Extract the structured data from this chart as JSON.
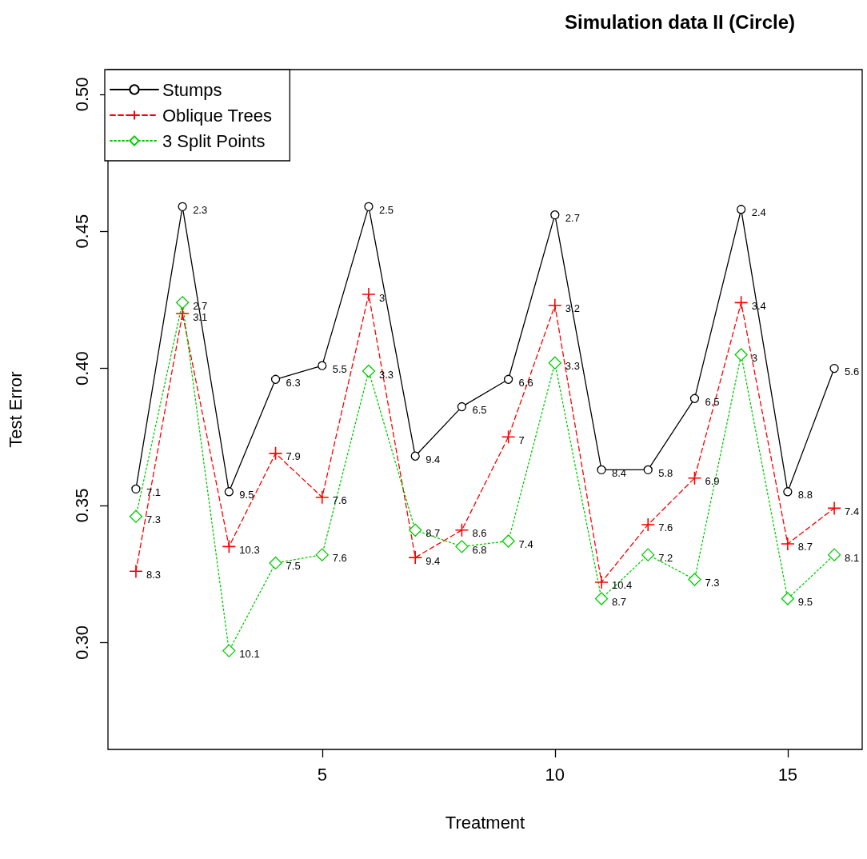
{
  "chart_data": {
    "type": "line",
    "title": "Simulation data II (Circle)",
    "xlabel": "Treatment",
    "ylabel": "Test Error",
    "x": [
      1,
      2,
      3,
      4,
      5,
      6,
      7,
      8,
      9,
      10,
      11,
      12,
      13,
      14,
      15,
      16
    ],
    "xlim": [
      0.4,
      16.6
    ],
    "xticks": [
      5,
      10,
      15
    ],
    "ylim": [
      0.261,
      0.509
    ],
    "yticks": [
      {
        "value": 0.3,
        "label": "0.30"
      },
      0.35,
      {
        "value": 0.4,
        "label": "0.40"
      },
      0.45,
      {
        "value": 0.5,
        "label": "0.50"
      }
    ],
    "grid": false,
    "legend": "top left",
    "series": [
      {
        "name": "Stumps",
        "color": "#000000",
        "marker": "circle",
        "line_style": "solid",
        "values": [
          0.356,
          0.459,
          0.355,
          0.396,
          0.401,
          0.459,
          0.368,
          0.386,
          0.396,
          0.456,
          0.363,
          0.363,
          0.389,
          0.458,
          0.355,
          0.4
        ]
      },
      {
        "name": "Oblique Trees",
        "color": "#ff0000",
        "marker": "cross",
        "line_style": "dashed",
        "values": [
          0.326,
          0.42,
          0.335,
          0.369,
          0.353,
          0.427,
          0.331,
          0.341,
          0.375,
          0.423,
          0.322,
          0.343,
          0.36,
          0.424,
          0.336,
          0.349
        ]
      },
      {
        "name": "3 Split Points",
        "color": "#00cd00",
        "marker": "diamond",
        "line_style": "dotted",
        "values": [
          0.346,
          0.424,
          0.297,
          0.329,
          0.332,
          0.399,
          0.341,
          0.335,
          0.337,
          0.402,
          0.316,
          0.332,
          0.323,
          0.405,
          0.316,
          0.332
        ]
      }
    ],
    "annotations": [
      {
        "text": "7.1",
        "x": 1,
        "y": 0.356
      },
      {
        "text": "2.3",
        "x": 2,
        "y": 0.459
      },
      {
        "text": "9.5",
        "x": 3,
        "y": 0.355
      },
      {
        "text": "6.3",
        "x": 4,
        "y": 0.396
      },
      {
        "text": "5.5",
        "x": 5,
        "y": 0.401
      },
      {
        "text": "2.5",
        "x": 6,
        "y": 0.459
      },
      {
        "text": "9.4",
        "x": 7,
        "y": 0.368
      },
      {
        "text": "6.5",
        "x": 8,
        "y": 0.386
      },
      {
        "text": "6.6",
        "x": 9,
        "y": 0.396
      },
      {
        "text": "2.7",
        "x": 10,
        "y": 0.456
      },
      {
        "text": "8.4",
        "x": 11,
        "y": 0.363
      },
      {
        "text": "5.8",
        "x": 12,
        "y": 0.363
      },
      {
        "text": "6.5",
        "x": 13,
        "y": 0.389
      },
      {
        "text": "2.4",
        "x": 14,
        "y": 0.458
      },
      {
        "text": "8.8",
        "x": 15,
        "y": 0.355
      },
      {
        "text": "5.6",
        "x": 16,
        "y": 0.4
      },
      {
        "text": "8.3",
        "x": 1,
        "y": 0.326
      },
      {
        "text": "3.1",
        "x": 2,
        "y": 0.42
      },
      {
        "text": "10.3",
        "x": 3,
        "y": 0.335
      },
      {
        "text": "7.9",
        "x": 4,
        "y": 0.369
      },
      {
        "text": "7.6",
        "x": 5,
        "y": 0.353
      },
      {
        "text": "3",
        "x": 6,
        "y": 0.427
      },
      {
        "text": "9.4",
        "x": 7,
        "y": 0.331
      },
      {
        "text": "8.6",
        "x": 8,
        "y": 0.341
      },
      {
        "text": "7",
        "x": 9,
        "y": 0.375
      },
      {
        "text": "3.2",
        "x": 10,
        "y": 0.423
      },
      {
        "text": "10.4",
        "x": 11,
        "y": 0.322
      },
      {
        "text": "7.6",
        "x": 12,
        "y": 0.343
      },
      {
        "text": "6.9",
        "x": 13,
        "y": 0.36
      },
      {
        "text": "3.4",
        "x": 14,
        "y": 0.424
      },
      {
        "text": "8.7",
        "x": 15,
        "y": 0.336
      },
      {
        "text": "7.4",
        "x": 16,
        "y": 0.349
      },
      {
        "text": "7.3",
        "x": 1,
        "y": 0.346
      },
      {
        "text": "2.7",
        "x": 2,
        "y": 0.424
      },
      {
        "text": "10.1",
        "x": 3,
        "y": 0.297
      },
      {
        "text": "7.5",
        "x": 4,
        "y": 0.329
      },
      {
        "text": "7.6",
        "x": 5,
        "y": 0.332
      },
      {
        "text": "3.3",
        "x": 6,
        "y": 0.399
      },
      {
        "text": "8.7",
        "x": 7,
        "y": 0.341
      },
      {
        "text": "6.8",
        "x": 8,
        "y": 0.335
      },
      {
        "text": "7.4",
        "x": 9,
        "y": 0.337
      },
      {
        "text": "3.3",
        "x": 10,
        "y": 0.402
      },
      {
        "text": "8.7",
        "x": 11,
        "y": 0.316
      },
      {
        "text": "7.2",
        "x": 12,
        "y": 0.332
      },
      {
        "text": "7.3",
        "x": 13,
        "y": 0.323
      },
      {
        "text": "3",
        "x": 14,
        "y": 0.405
      },
      {
        "text": "9.5",
        "x": 15,
        "y": 0.316
      },
      {
        "text": "8.1",
        "x": 16,
        "y": 0.332
      }
    ]
  }
}
